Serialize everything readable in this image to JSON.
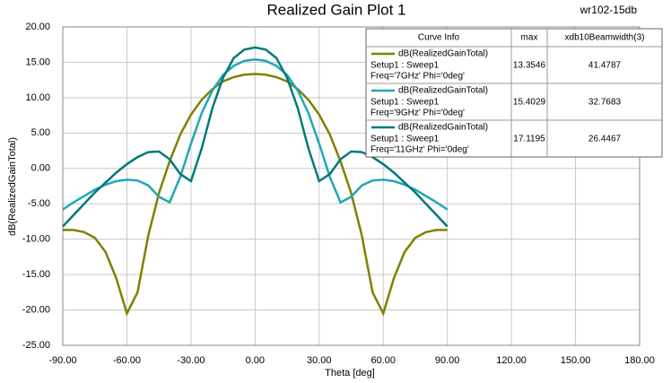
{
  "chart_data": {
    "type": "line",
    "title": "Realized Gain Plot 1",
    "subtitle": "wr102-15db",
    "x_label": "Theta [deg]",
    "y_label": "dB(RealizedGainTotal)",
    "x": [
      -90,
      -85,
      -80,
      -75,
      -70,
      -65,
      -60,
      -55,
      -50,
      -45,
      -40,
      -35,
      -30,
      -25,
      -20,
      -15,
      -10,
      -5,
      0,
      5,
      10,
      15,
      20,
      25,
      30,
      35,
      40,
      45,
      50,
      55,
      60,
      65,
      70,
      75,
      80,
      85,
      90
    ],
    "series": [
      {
        "name": "dB(RealizedGainTotal)",
        "setup": "Setup1 : Sweep1",
        "variation": "Freq='7GHz' Phi='0deg'",
        "max": 13.3546,
        "beamwidth": 41.4787,
        "color": "#808000",
        "values": [
          -8.7,
          -8.7,
          -9.0,
          -9.8,
          -11.8,
          -15.5,
          -20.5,
          -17.5,
          -9.5,
          -3.5,
          1.0,
          4.8,
          7.6,
          9.7,
          11.2,
          12.3,
          12.9,
          13.25,
          13.35,
          13.25,
          12.9,
          12.3,
          11.2,
          9.7,
          7.6,
          4.8,
          1.0,
          -3.5,
          -9.5,
          -17.5,
          -20.5,
          -15.5,
          -11.8,
          -9.8,
          -9.0,
          -8.7,
          -8.7
        ]
      },
      {
        "name": "dB(RealizedGainTotal)",
        "setup": "Setup1 : Sweep1",
        "variation": "Freq='9GHz' Phi='0deg'",
        "max": 15.4029,
        "beamwidth": 32.7683,
        "color": "#20a8b4",
        "values": [
          -5.8,
          -4.8,
          -3.9,
          -3.0,
          -2.3,
          -1.8,
          -1.6,
          -1.7,
          -2.4,
          -4.0,
          -4.8,
          -1.2,
          3.5,
          7.8,
          11.0,
          13.2,
          14.5,
          15.2,
          15.4,
          15.2,
          14.5,
          13.2,
          11.0,
          7.8,
          3.5,
          -1.2,
          -4.8,
          -4.0,
          -2.4,
          -1.7,
          -1.6,
          -1.8,
          -2.3,
          -3.0,
          -3.9,
          -4.8,
          -5.8
        ]
      },
      {
        "name": "dB(RealizedGainTotal)",
        "setup": "Setup1 : Sweep1",
        "variation": "Freq='11GHz' Phi='0deg'",
        "max": 17.1195,
        "beamwidth": 26.4467,
        "color": "#007a7a",
        "values": [
          -8.2,
          -6.6,
          -5.0,
          -3.4,
          -2.0,
          -0.6,
          0.6,
          1.6,
          2.3,
          2.4,
          1.3,
          -0.8,
          -1.8,
          2.8,
          8.5,
          12.8,
          15.6,
          16.8,
          17.1,
          16.8,
          15.6,
          12.8,
          8.5,
          2.8,
          -1.8,
          -0.8,
          1.3,
          2.4,
          2.3,
          1.6,
          0.6,
          -0.6,
          -2.0,
          -3.4,
          -5.0,
          -6.6,
          -8.2
        ]
      }
    ],
    "legend_columns": [
      "Curve Info",
      "max",
      "xdb10Beamwidth(3)"
    ],
    "xlim": [
      -90,
      180
    ],
    "xticks": [
      {
        "value": -90,
        "label": "-90.00"
      },
      {
        "value": -60,
        "label": "-60.00"
      },
      {
        "value": -30,
        "label": "-30.00"
      },
      {
        "value": 0,
        "label": "0.00"
      },
      {
        "value": 30,
        "label": "30.00"
      },
      {
        "value": 60,
        "label": "60.00"
      },
      {
        "value": 90,
        "label": "90.00"
      },
      {
        "value": 120,
        "label": "120.00"
      },
      {
        "value": 150,
        "label": "150.00"
      },
      {
        "value": 180,
        "label": "180.00"
      }
    ],
    "ylim": [
      -25,
      20
    ],
    "yticks": [
      {
        "value": -25,
        "label": "-25.00"
      },
      {
        "value": -20,
        "label": "-20.00"
      },
      {
        "value": -15,
        "label": "-15.00"
      },
      {
        "value": -10,
        "label": "-10.00"
      },
      {
        "value": -5,
        "label": "-5.00"
      },
      {
        "value": 0,
        "label": "0.00"
      },
      {
        "value": 5,
        "label": "5.00"
      },
      {
        "value": 10,
        "label": "10.00"
      },
      {
        "value": 15,
        "label": "15.00"
      },
      {
        "value": 20,
        "label": "20.00"
      }
    ],
    "grid": true
  }
}
